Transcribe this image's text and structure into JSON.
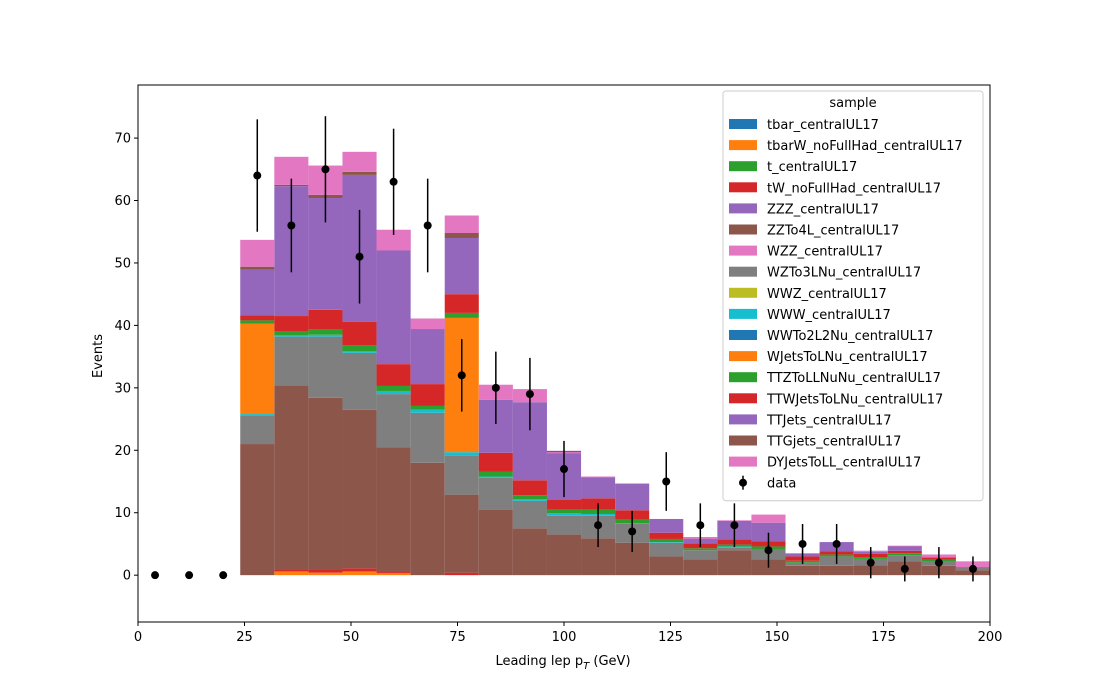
{
  "chart_data": {
    "type": "stacked-histogram",
    "xlabel": "Leading lep p",
    "xlabel_sub": "T",
    "xlabel_unit": " (GeV)",
    "ylabel": "Events",
    "xlim": [
      0,
      200
    ],
    "ylim": [
      -7.5,
      78.5
    ],
    "xticks": [
      0,
      25,
      50,
      75,
      100,
      125,
      150,
      175,
      200
    ],
    "yticks": [
      0,
      10,
      20,
      30,
      40,
      50,
      60,
      70
    ],
    "grid": false,
    "legend_title": "sample",
    "legend_position": "top-right",
    "bin_edges": [
      24,
      32,
      40,
      48,
      56,
      64,
      72,
      80,
      88,
      96,
      104,
      112,
      120,
      128,
      136,
      144,
      152,
      160,
      168,
      176,
      184,
      192,
      200
    ],
    "series": [
      {
        "name": "tbar_centralUL17",
        "color": "#1f77b4",
        "values": [
          0,
          0,
          0,
          0,
          0,
          0,
          0,
          0,
          0,
          0,
          0,
          0,
          0,
          0,
          0,
          0,
          0,
          0,
          0,
          0,
          0,
          0
        ]
      },
      {
        "name": "tbarW_noFullHad_centralUL17",
        "color": "#ff7f0e",
        "values": [
          0,
          0.6,
          0.4,
          0.6,
          0.3,
          0,
          0,
          0,
          0,
          0,
          0,
          0,
          0,
          0,
          0,
          0,
          0,
          0,
          0,
          0,
          0,
          0
        ]
      },
      {
        "name": "t_centralUL17",
        "color": "#2ca02c",
        "values": [
          0,
          0,
          0,
          0,
          0,
          0,
          0,
          0,
          0,
          0,
          0,
          0,
          0,
          0,
          0,
          0,
          0,
          0,
          0,
          0,
          0,
          0
        ]
      },
      {
        "name": "tW_noFullHad_centralUL17",
        "color": "#d62728",
        "values": [
          0,
          0.3,
          0.5,
          0.5,
          0.2,
          0,
          0.4,
          0,
          0,
          0,
          0,
          0,
          0,
          0,
          0,
          0,
          0,
          0,
          0,
          0,
          0,
          0
        ]
      },
      {
        "name": "ZZZ_centralUL17",
        "color": "#9467bd",
        "values": [
          0,
          0,
          0,
          0,
          0,
          0,
          0,
          0,
          0,
          0,
          0,
          0,
          0,
          0,
          0,
          0,
          0,
          0,
          0,
          0,
          0,
          0
        ]
      },
      {
        "name": "ZZTo4L_centralUL17",
        "color": "#8c564b",
        "values": [
          21,
          29.5,
          27.5,
          25.4,
          20,
          18,
          12.5,
          10.5,
          7.5,
          6.5,
          5.9,
          5.2,
          3.0,
          2.5,
          4.0,
          2.5,
          1.5,
          1.5,
          1.6,
          2.2,
          1.5,
          0.8
        ]
      },
      {
        "name": "WZZ_centralUL17",
        "color": "#e377c2",
        "values": [
          0,
          0,
          0,
          0,
          0,
          0,
          0,
          0,
          0,
          0,
          0,
          0,
          0,
          0,
          0,
          0,
          0,
          0,
          0,
          0,
          0,
          0
        ]
      },
      {
        "name": "WZTo3LNu_centralUL17",
        "color": "#7f7f7f",
        "values": [
          4.6,
          7.8,
          9.8,
          9.1,
          8.5,
          8,
          6.3,
          5.1,
          4.4,
          3,
          3.6,
          3,
          2.2,
          1.5,
          0.4,
          1.6,
          0.5,
          1.5,
          1.0,
          1.0,
          0.7,
          0.5
        ]
      },
      {
        "name": "WWZ_centralUL17",
        "color": "#bcbd22",
        "values": [
          0,
          0,
          0,
          0,
          0,
          0,
          0,
          0,
          0,
          0,
          0,
          0,
          0,
          0,
          0,
          0,
          0,
          0,
          0,
          0,
          0,
          0
        ]
      },
      {
        "name": "WWW_centralUL17",
        "color": "#17becf",
        "values": [
          0.2,
          0.2,
          0.3,
          0.3,
          0.5,
          0.5,
          0.5,
          0.2,
          0.3,
          0.4,
          0.3,
          0.1,
          0.1,
          0,
          0.2,
          0,
          0,
          0,
          0,
          0,
          0,
          0
        ]
      },
      {
        "name": "WWTo2L2Nu_centralUL17",
        "color": "#1f77b4",
        "values": [
          0,
          0,
          0,
          0,
          0,
          0,
          0,
          0,
          0,
          0,
          0,
          0,
          0,
          0,
          0,
          0,
          0,
          0,
          0,
          0,
          0,
          0
        ]
      },
      {
        "name": "WJetsToLNu_centralUL17",
        "color": "#ff7f0e",
        "values": [
          14.5,
          0,
          0,
          0,
          0,
          0,
          21.5,
          0,
          0,
          0,
          0,
          0,
          0,
          0,
          0,
          0,
          0,
          0,
          0,
          0,
          0,
          0
        ]
      },
      {
        "name": "TTZToLLNuNu_centralUL17",
        "color": "#2ca02c",
        "values": [
          0.5,
          0.7,
          0.8,
          0.9,
          0.8,
          0.6,
          0.8,
          0.8,
          0.6,
          0.6,
          0.7,
          0.6,
          0.5,
          0.3,
          0.3,
          0.5,
          0.3,
          0.3,
          0.3,
          0.3,
          0.3,
          0.2
        ]
      },
      {
        "name": "TTWJetsToLNu_centralUL17",
        "color": "#d62728",
        "values": [
          0.8,
          2.4,
          3.2,
          3.8,
          3.5,
          3.5,
          3.0,
          3.0,
          2.4,
          1.6,
          1.8,
          1.5,
          1.0,
          0.8,
          0.8,
          0.8,
          0.7,
          0.5,
          0.5,
          0.4,
          0.3,
          0.2
        ]
      },
      {
        "name": "TTJets_centralUL17",
        "color": "#9467bd",
        "values": [
          7.3,
          20.8,
          17.9,
          23.5,
          21.5,
          10.5,
          9.0,
          8.5,
          12.5,
          7.8,
          3.3,
          4.2,
          2.2,
          1.0,
          3.0,
          3.0,
          0.5,
          1.5,
          0.5,
          0.8,
          0.5,
          0.5
        ]
      },
      {
        "name": "TTGjets_centralUL17",
        "color": "#8c564b",
        "values": [
          0.5,
          0.2,
          0.5,
          0.5,
          0,
          0,
          0.8,
          0,
          0,
          -0.2,
          0.1,
          0,
          0,
          0,
          0,
          0,
          0,
          0,
          0,
          0,
          0,
          0
        ]
      },
      {
        "name": "DYJetsToLL_centralUL17",
        "color": "#e377c2",
        "values": [
          4.3,
          4.5,
          4.7,
          3.2,
          -3.3,
          -1.7,
          2.8,
          2.4,
          2.1,
          -0.2,
          0.1,
          0.1,
          0,
          -0.3,
          0.1,
          1.3,
          -0.1,
          0,
          -0.2,
          -0.1,
          -0.4,
          -0.9
        ]
      }
    ],
    "data_points": {
      "name": "data",
      "color": "#000000",
      "x": [
        4,
        12,
        20,
        28,
        36,
        44,
        52,
        60,
        68,
        76,
        84,
        92,
        100,
        108,
        116,
        124,
        132,
        140,
        148,
        156,
        164,
        172,
        180,
        188,
        196
      ],
      "y": [
        0,
        0,
        0,
        64,
        56,
        65,
        51,
        63,
        56,
        32,
        30,
        29,
        17,
        8,
        7,
        15,
        8,
        8,
        4,
        5,
        5,
        2,
        1,
        2,
        1
      ],
      "yerr": [
        0,
        0,
        0,
        9,
        7.5,
        8.5,
        7.5,
        8.5,
        7.5,
        5.8,
        5.8,
        5.8,
        4.5,
        3.5,
        3.3,
        4.7,
        3.5,
        3.5,
        2.8,
        3.2,
        3.2,
        2.5,
        2.0,
        2.5,
        2.0
      ]
    }
  }
}
